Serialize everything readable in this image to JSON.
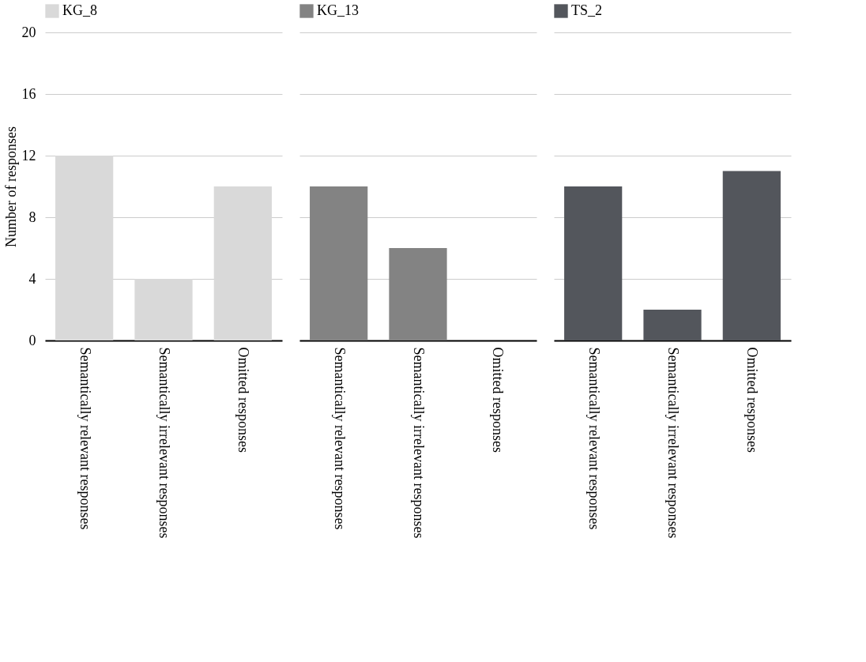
{
  "chart_data": [
    {
      "type": "bar",
      "ylabel": "Number of responses",
      "categories": [
        "Semantically relevant responses",
        "Semantically irrelevant responses",
        "Omitted responses"
      ],
      "series": [
        {
          "name": "KG_8",
          "color": "#d9d9d9",
          "values": [
            12,
            4,
            10
          ]
        }
      ],
      "ylim": [
        0,
        20
      ],
      "yticks": [
        0,
        4,
        8,
        12,
        16,
        20
      ],
      "grid": "y",
      "legend": "top"
    },
    {
      "type": "bar",
      "categories": [
        "Semantically relevant responses",
        "Semantically irrelevant responses",
        "Omitted responses"
      ],
      "series": [
        {
          "name": "KG_13",
          "color": "#838383",
          "values": [
            10,
            6,
            0
          ]
        }
      ],
      "ylim": [
        0,
        20
      ],
      "yticks": [
        0,
        4,
        8,
        12,
        16,
        20
      ],
      "grid": "y",
      "legend": "top",
      "tick_labels": "x"
    },
    {
      "type": "bar",
      "categories": [
        "Semantically relevant responses",
        "Semantically irrelevant responses",
        "Omitted responses"
      ],
      "series": [
        {
          "name": "TS_2",
          "color": "#53565c",
          "values": [
            10,
            2,
            11
          ]
        }
      ],
      "ylim": [
        0,
        20
      ],
      "yticks": [
        0,
        4,
        8,
        12,
        16,
        20
      ],
      "grid": "y",
      "legend": "top",
      "tick_labels": "x"
    }
  ]
}
